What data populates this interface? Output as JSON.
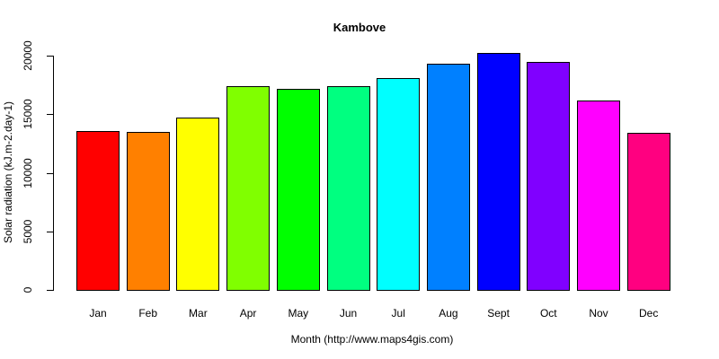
{
  "chart_data": {
    "type": "bar",
    "title": "Kambove",
    "xlabel": "Month (http://www.maps4gis.com)",
    "ylabel": "Solar radiation (kJ.m-2.day-1)",
    "categories": [
      "Jan",
      "Feb",
      "Mar",
      "Apr",
      "May",
      "Jun",
      "Jul",
      "Aug",
      "Sept",
      "Oct",
      "Nov",
      "Dec"
    ],
    "values": [
      13550,
      13450,
      14700,
      17400,
      17150,
      17400,
      18050,
      19300,
      20200,
      19500,
      16150,
      13400
    ],
    "colors": [
      "#FF0000",
      "#FF8000",
      "#FFFF00",
      "#80FF00",
      "#00FF00",
      "#00FF80",
      "#00FFFF",
      "#0080FF",
      "#0000FF",
      "#8000FF",
      "#FF00FF",
      "#FF0080"
    ],
    "ylim": [
      0,
      20000
    ],
    "yticks": [
      0,
      5000,
      10000,
      15000,
      20000
    ],
    "grid": false,
    "legend": null
  }
}
